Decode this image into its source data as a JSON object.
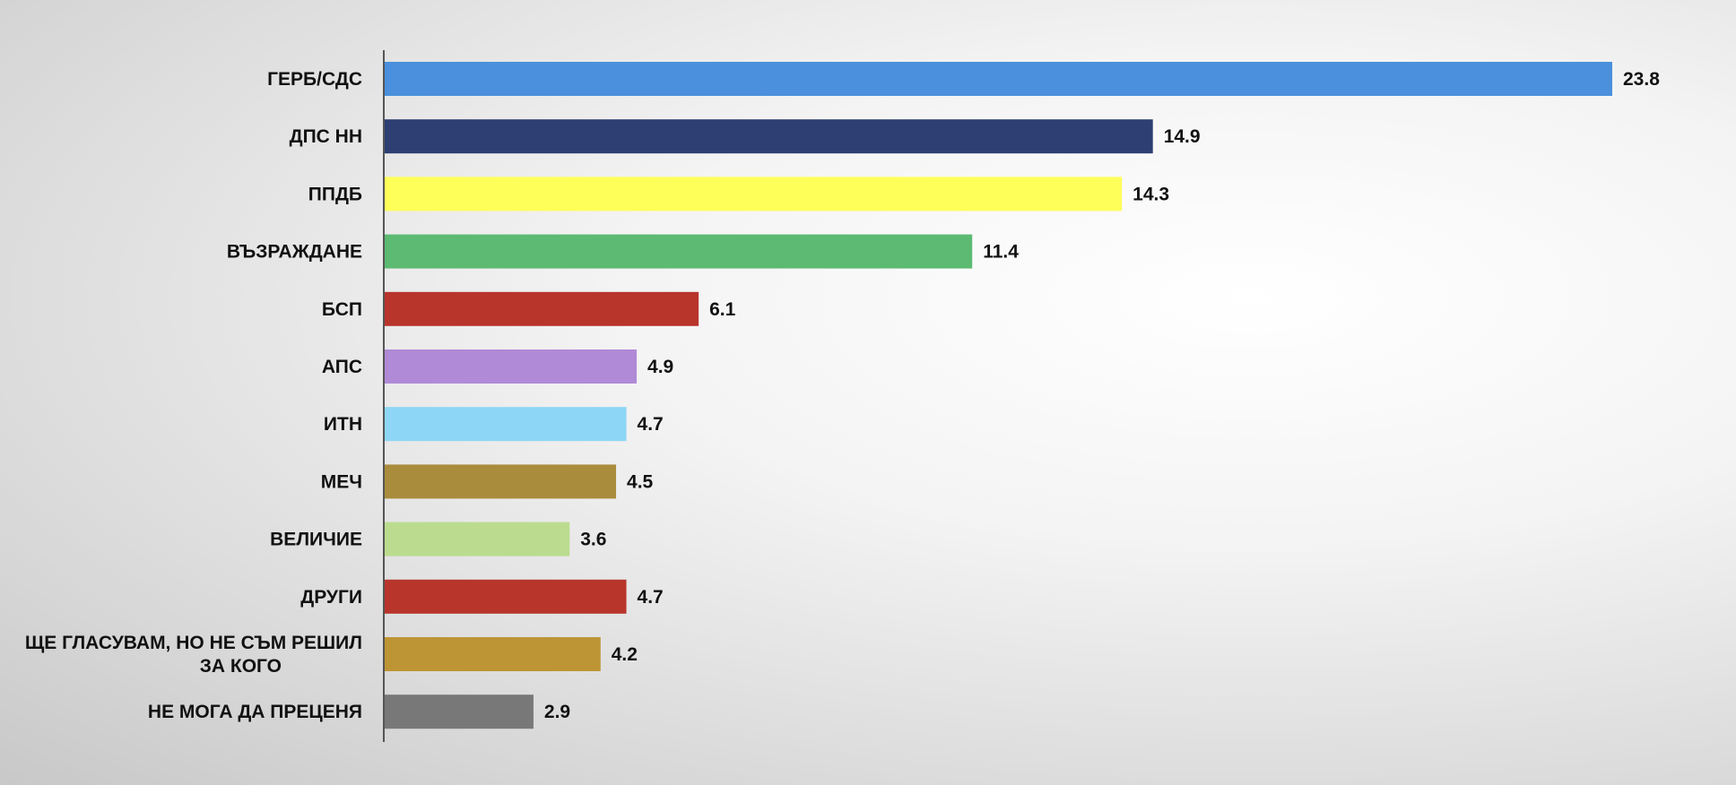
{
  "chart_data": {
    "type": "bar",
    "orientation": "horizontal",
    "title": "",
    "xlabel": "",
    "ylabel": "",
    "xlim": [
      0,
      23.8
    ],
    "grid": false,
    "legend": "none",
    "categories": [
      "ГЕРБ/СДС",
      "ДПС НН",
      "ППДБ",
      "ВЪЗРАЖДАНЕ",
      "БСП",
      "АПС",
      "ИТН",
      "МЕЧ",
      "ВЕЛИЧИЕ",
      "ДРУГИ",
      "ЩЕ ГЛАСУВАМ, НО НЕ СЪМ РЕШИЛ ЗА КОГО",
      "НЕ МОГА ДА ПРЕЦЕНЯ"
    ],
    "category_lines": [
      [
        "ГЕРБ/СДС"
      ],
      [
        "ДПС НН"
      ],
      [
        "ППДБ"
      ],
      [
        "ВЪЗРАЖДАНЕ"
      ],
      [
        "БСП"
      ],
      [
        "АПС"
      ],
      [
        "ИТН"
      ],
      [
        "МЕЧ"
      ],
      [
        "ВЕЛИЧИЕ"
      ],
      [
        "ДРУГИ"
      ],
      [
        "ЩЕ ГЛАСУВАМ, НО НЕ СЪМ РЕШИЛ",
        "ЗА КОГО"
      ],
      [
        "НЕ МОГА ДА ПРЕЦЕНЯ"
      ]
    ],
    "values": [
      23.8,
      14.9,
      14.3,
      11.4,
      6.1,
      4.9,
      4.7,
      4.5,
      3.6,
      4.7,
      4.2,
      2.9
    ],
    "value_labels": [
      "23.8",
      "14.9",
      "14.3",
      "11.4",
      "6.1",
      "4.9",
      "4.7",
      "4.5",
      "3.6",
      "4.7",
      "4.2",
      "2.9"
    ],
    "colors": [
      "#4a90dc",
      "#2d3f73",
      "#ffff5a",
      "#5cba72",
      "#b8352c",
      "#b08ad6",
      "#8dd6f5",
      "#a98c3c",
      "#bbdc8f",
      "#b8352c",
      "#bd9535",
      "#787878"
    ]
  }
}
